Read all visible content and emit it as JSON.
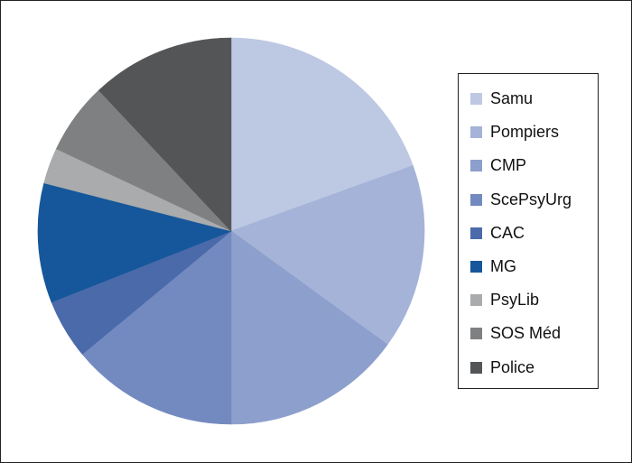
{
  "chart_data": {
    "type": "pie",
    "title": "",
    "legend_position": "right",
    "start_angle_deg": 0,
    "direction": "clockwise",
    "slices": [
      {
        "label": "Samu",
        "value": 19.5,
        "color": "#bdc8e3"
      },
      {
        "label": "Pompiers",
        "value": 15.5,
        "color": "#a4b3d7"
      },
      {
        "label": "CMP",
        "value": 15.0,
        "color": "#8d9fcc"
      },
      {
        "label": "ScePsyUrg",
        "value": 14.0,
        "color": "#738ac0"
      },
      {
        "label": "CAC",
        "value": 5.0,
        "color": "#4a6aaa"
      },
      {
        "label": "MG",
        "value": 10.0,
        "color": "#15579a"
      },
      {
        "label": "PsyLib",
        "value": 3.0,
        "color": "#aaabac"
      },
      {
        "label": "SOS Méd",
        "value": 6.0,
        "color": "#7f8081"
      },
      {
        "label": "Police",
        "value": 12.0,
        "color": "#545557"
      }
    ]
  }
}
